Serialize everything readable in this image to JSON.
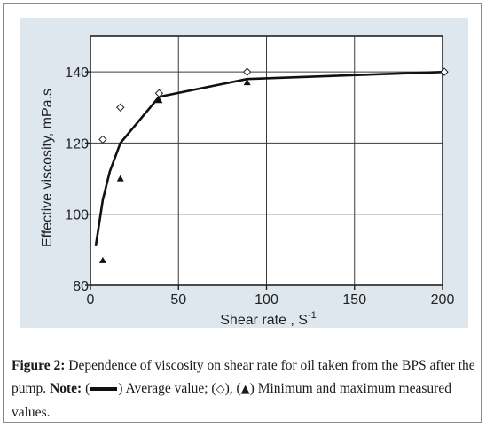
{
  "chart_data": {
    "type": "line",
    "xlabel": "Shear rate , S",
    "xlabel_sup": "-1",
    "ylabel": "Effective viscosity, mPa.s",
    "xlim": [
      0,
      200
    ],
    "ylim": [
      80,
      150
    ],
    "x_ticks": [
      0,
      50,
      100,
      150,
      200
    ],
    "y_ticks": [
      80,
      100,
      120,
      140
    ],
    "grid": true,
    "series": [
      {
        "role": "average",
        "marker": "line",
        "x": [
          3,
          7,
          11,
          17,
          39,
          89,
          201
        ],
        "y": [
          91,
          104,
          112,
          120,
          133,
          138,
          140
        ]
      },
      {
        "role": "maximum",
        "marker": "open-diamond",
        "x": [
          7,
          17,
          39,
          89,
          201
        ],
        "y": [
          121,
          130,
          134,
          140,
          140
        ]
      },
      {
        "role": "minimum",
        "marker": "filled-triangle",
        "x": [
          7,
          17,
          39,
          89
        ],
        "y": [
          87,
          110,
          132,
          137
        ]
      }
    ],
    "colors": {
      "panel": "#dfe7ee",
      "plot": "#ffffff",
      "line": "#111111"
    }
  },
  "caption": {
    "figure_label": "Figure 2:",
    "text": " Dependence of viscosity on shear rate for oil taken from the BPS after the pump. ",
    "note_label": "Note:",
    "open_paren": " (",
    "avg_text": ") Average value; (",
    "diamond_glyph": "◇",
    "mid_text": "), (",
    "triangle_glyph": "▲",
    "end_text": ") Minimum and maximum measured values."
  }
}
